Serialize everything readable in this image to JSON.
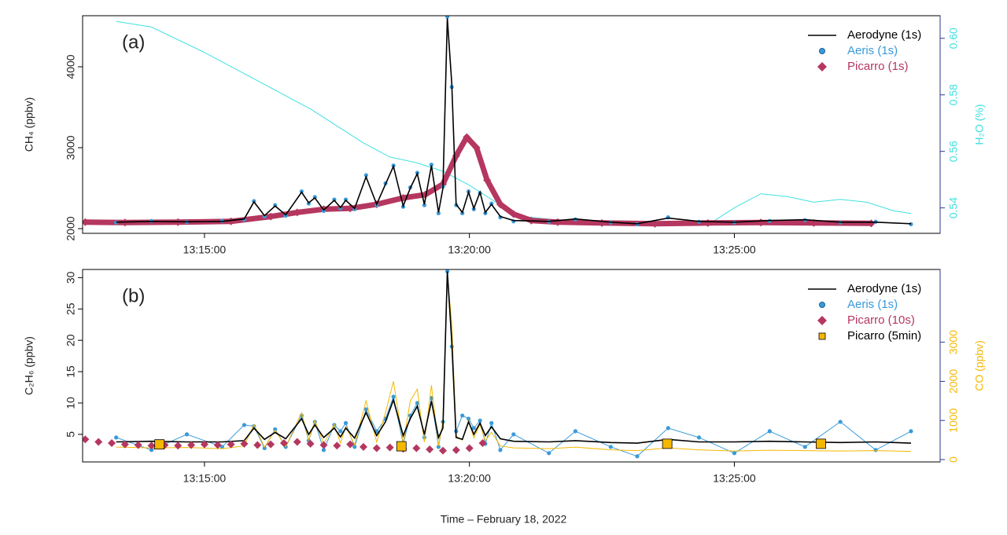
{
  "chart_data": [
    {
      "type": "line",
      "panel_label": "(a)",
      "ylabel": "CH₄ (ppbv)",
      "y2label": "H₂O (%)",
      "y2color": "#40e0e0",
      "xlim": [
        "13:12:42",
        "13:28:53"
      ],
      "xticks": [
        "13:15:00",
        "13:20:00",
        "13:25:00"
      ],
      "ylim": [
        1942,
        4631
      ],
      "yticks": [
        2000,
        3000,
        4000
      ],
      "y2lim": [
        0.531,
        0.608
      ],
      "y2ticks": [
        0.54,
        0.56,
        0.58,
        {
          "value": 0.6,
          "label": "0.60"
        }
      ],
      "legend": "topright",
      "x": [
        "13:13:20",
        "13:14:00",
        "13:14:40",
        "13:15:20",
        "13:15:45",
        "13:15:56",
        "13:16:08",
        "13:16:20",
        "13:16:32",
        "13:16:50",
        "13:16:58",
        "13:17:05",
        "13:17:15",
        "13:17:27",
        "13:17:34",
        "13:17:40",
        "13:17:50",
        "13:18:03",
        "13:18:15",
        "13:18:25",
        "13:18:34",
        "13:18:45",
        "13:18:53",
        "13:19:01",
        "13:19:09",
        "13:19:17",
        "13:19:25",
        "13:19:30",
        "13:19:35",
        "13:19:40",
        "13:19:45",
        "13:19:52",
        "13:19:59",
        "13:20:05",
        "13:20:12",
        "13:20:18",
        "13:20:25",
        "13:20:35",
        "13:20:50",
        "13:21:30",
        "13:22:00",
        "13:22:40",
        "13:23:10",
        "13:23:45",
        "13:24:20",
        "13:25:00",
        "13:25:40",
        "13:26:20",
        "13:27:00",
        "13:27:40",
        "13:28:20"
      ],
      "series": [
        {
          "axis": "y2",
          "color": "#40e0e0",
          "marker": "line",
          "x": [
            "13:13:20",
            "13:14:00",
            "13:15:00",
            "13:16:00",
            "13:17:00",
            "13:18:00",
            "13:18:30",
            "13:19:00",
            "13:19:30",
            "13:20:00",
            "13:20:30",
            "13:21:00",
            "13:22:00",
            "13:23:00",
            "13:24:00",
            "13:24:30",
            "13:25:00",
            "13:25:30",
            "13:26:00",
            "13:26:30",
            "13:27:00",
            "13:27:30",
            "13:28:00",
            "13:28:20"
          ],
          "values": [
            0.606,
            0.604,
            0.595,
            0.585,
            0.575,
            0.563,
            0.558,
            0.556,
            0.553,
            0.548,
            0.542,
            0.537,
            0.535,
            0.534,
            0.534,
            0.534,
            0.54,
            0.545,
            0.544,
            0.542,
            0.543,
            0.542,
            0.539,
            0.538
          ]
        },
        {
          "name": "Picarro (1s)",
          "color": "#b5375f",
          "marker": "diamond",
          "x": [
            "13:12:45",
            "13:13:30",
            "13:14:30",
            "13:15:30",
            "13:16:15",
            "13:16:45",
            "13:17:15",
            "13:17:45",
            "13:18:15",
            "13:18:45",
            "13:19:10",
            "13:19:30",
            "13:19:45",
            "13:19:57",
            "13:20:08",
            "13:20:20",
            "13:20:35",
            "13:20:50",
            "13:21:10",
            "13:21:40",
            "13:22:30",
            "13:23:30",
            "13:24:30",
            "13:25:30",
            "13:26:30",
            "13:27:35"
          ],
          "values": [
            2080,
            2075,
            2080,
            2090,
            2150,
            2200,
            2240,
            2250,
            2300,
            2380,
            2420,
            2550,
            2900,
            3130,
            3000,
            2600,
            2300,
            2180,
            2100,
            2080,
            2070,
            2060,
            2070,
            2075,
            2070,
            2065
          ]
        },
        {
          "name": "Aeris (1s)",
          "color": "#3a9ad9",
          "marker": "circle",
          "values": [
            2075,
            2095,
            2080,
            2095,
            2110,
            2340,
            2150,
            2290,
            2160,
            2460,
            2310,
            2390,
            2220,
            2360,
            2250,
            2360,
            2240,
            2660,
            2290,
            2560,
            2780,
            2270,
            2510,
            2690,
            2290,
            2790,
            2190,
            2520,
            4620,
            3750,
            2290,
            2190,
            2460,
            2240,
            2440,
            2190,
            2310,
            2140,
            2090,
            2085,
            2115,
            2075,
            2055,
            2140,
            2085,
            2075,
            2095,
            2105,
            2075,
            2085,
            2055
          ]
        },
        {
          "name": "Aerodyne (1s)",
          "color": "#000000",
          "marker": "line",
          "values": [
            2080,
            2090,
            2085,
            2090,
            2120,
            2330,
            2160,
            2280,
            2170,
            2450,
            2320,
            2380,
            2230,
            2350,
            2260,
            2350,
            2250,
            2640,
            2300,
            2550,
            2770,
            2280,
            2500,
            2680,
            2300,
            2780,
            2200,
            2500,
            4600,
            3800,
            2300,
            2200,
            2450,
            2250,
            2450,
            2200,
            2300,
            2150,
            2100,
            2090,
            2120,
            2080,
            2060,
            2130,
            2090,
            2080,
            2100,
            2110,
            2080,
            2080,
            2060
          ]
        }
      ]
    },
    {
      "type": "line",
      "panel_label": "(b)",
      "ylabel": "C₂H₆ (ppbv)",
      "y2label": "CO (ppbv)",
      "y2color": "#f5b800",
      "xlabel": "Time – February 18, 2022",
      "xlim": [
        "13:12:42",
        "13:28:53"
      ],
      "xticks": [
        "13:15:00",
        "13:20:00",
        "13:25:00"
      ],
      "ylim": [
        0.6,
        31.3
      ],
      "yticks": [
        5,
        10,
        15,
        20,
        25,
        30
      ],
      "y2lim": [
        -60,
        4860
      ],
      "y2ticks": [
        0,
        1000,
        2000,
        3000
      ],
      "legend": "topright",
      "x": [
        "13:13:20",
        "13:14:00",
        "13:14:40",
        "13:15:20",
        "13:15:45",
        "13:15:56",
        "13:16:08",
        "13:16:20",
        "13:16:32",
        "13:16:50",
        "13:16:58",
        "13:17:05",
        "13:17:15",
        "13:17:27",
        "13:17:34",
        "13:17:40",
        "13:17:50",
        "13:18:03",
        "13:18:15",
        "13:18:25",
        "13:18:34",
        "13:18:45",
        "13:18:53",
        "13:19:01",
        "13:19:09",
        "13:19:17",
        "13:19:25",
        "13:19:30",
        "13:19:35",
        "13:19:40",
        "13:19:45",
        "13:19:52",
        "13:19:59",
        "13:20:05",
        "13:20:12",
        "13:20:18",
        "13:20:25",
        "13:20:35",
        "13:20:50",
        "13:21:30",
        "13:22:00",
        "13:22:40",
        "13:23:10",
        "13:23:45",
        "13:24:20",
        "13:25:00",
        "13:25:40",
        "13:26:20",
        "13:27:00",
        "13:27:40",
        "13:28:20"
      ],
      "series": [
        {
          "name": "Aeris (1s)",
          "color": "#3a9ad9",
          "marker": "circle",
          "line": true,
          "values": [
            4.5,
            2.5,
            5.0,
            3.0,
            6.5,
            6.3,
            2.8,
            5.8,
            3.0,
            8.0,
            4.0,
            7.0,
            2.5,
            6.5,
            5.5,
            6.8,
            3.0,
            9.0,
            5.5,
            7.5,
            11.0,
            3.5,
            8.0,
            10.0,
            4.5,
            10.8,
            3.0,
            7.0,
            31,
            19,
            5.5,
            8.0,
            7.5,
            6.0,
            7.2,
            3.5,
            6.8,
            2.5,
            5.0,
            2.0,
            5.5,
            3.0,
            1.5,
            6.0,
            4.5,
            2.0,
            5.5,
            3.0,
            7.0,
            2.5,
            5.5
          ]
        },
        {
          "axis": "y2",
          "color": "#f5b800",
          "marker": "line",
          "values": [
            320,
            300,
            310,
            280,
            350,
            900,
            320,
            750,
            330,
            1200,
            500,
            1000,
            400,
            900,
            420,
            850,
            380,
            1500,
            450,
            1200,
            2000,
            420,
            1500,
            1800,
            450,
            1900,
            350,
            1000,
            4700,
            3500,
            600,
            500,
            1000,
            550,
            900,
            480,
            700,
            350,
            300,
            280,
            320,
            250,
            230,
            300,
            250,
            220,
            240,
            230,
            220,
            230,
            210
          ]
        },
        {
          "name": "Aerodyne (1s)",
          "color": "#000000",
          "marker": "line",
          "values": [
            3.8,
            3.9,
            3.8,
            3.8,
            4.0,
            6.0,
            4.2,
            5.3,
            4.3,
            7.5,
            5.0,
            6.5,
            4.5,
            6.0,
            4.6,
            6.0,
            4.4,
            8.5,
            4.8,
            7.0,
            10.5,
            4.8,
            7.5,
            9.5,
            5.0,
            10.3,
            4.5,
            6.0,
            31,
            20,
            4.5,
            4.2,
            7.0,
            5.0,
            6.8,
            4.8,
            6.2,
            4.3,
            3.9,
            3.8,
            4.0,
            3.7,
            3.6,
            4.2,
            3.8,
            3.8,
            3.9,
            3.8,
            3.7,
            3.8,
            3.6
          ]
        },
        {
          "name": "Picarro (10s)",
          "color": "#b5375f",
          "marker": "diamond",
          "x": [
            "13:12:45",
            "13:13:00",
            "13:13:15",
            "13:13:30",
            "13:13:45",
            "13:14:00",
            "13:14:15",
            "13:14:30",
            "13:14:45",
            "13:15:00",
            "13:15:15",
            "13:15:30",
            "13:15:45",
            "13:16:00",
            "13:16:15",
            "13:16:30",
            "13:16:45",
            "13:17:00",
            "13:17:15",
            "13:17:30",
            "13:17:45",
            "13:18:00",
            "13:18:15",
            "13:18:30",
            "13:18:45",
            "13:19:00",
            "13:19:15",
            "13:19:30",
            "13:19:45",
            "13:20:00",
            "13:20:15"
          ],
          "values": [
            4.2,
            3.8,
            3.6,
            3.4,
            3.3,
            3.2,
            3.3,
            3.2,
            3.3,
            3.4,
            3.3,
            3.4,
            3.5,
            3.3,
            3.4,
            3.6,
            3.8,
            3.5,
            3.3,
            3.2,
            3.4,
            3.0,
            2.8,
            2.9,
            2.7,
            2.8,
            2.6,
            2.4,
            2.5,
            2.8,
            3.6
          ]
        },
        {
          "name": "Picarro (5min)",
          "color": "#f5b800",
          "text_color": "#000000",
          "marker": "square",
          "x": [
            "13:14:09",
            "13:18:43",
            "13:23:44",
            "13:26:38"
          ],
          "values": [
            3.4,
            3.1,
            3.5,
            3.5
          ]
        }
      ]
    }
  ]
}
